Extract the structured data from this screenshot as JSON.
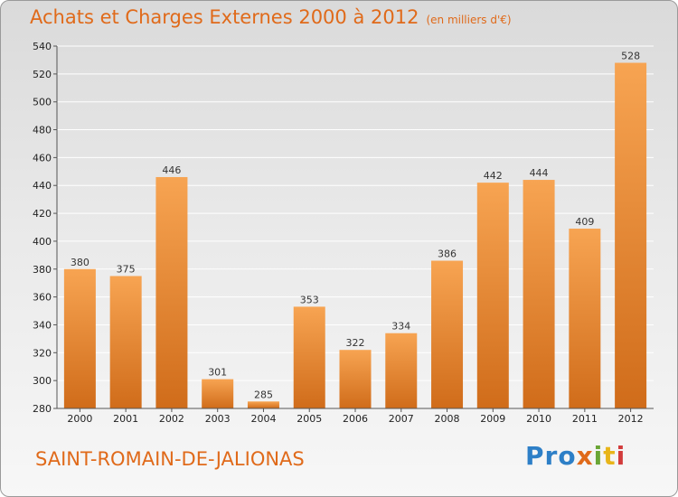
{
  "title": "Achats et Charges Externes 2000 à 2012",
  "unit": "(en milliers d'€)",
  "town": "SAINT-ROMAIN-DE-JALIONAS",
  "logo": [
    "Pro",
    "x",
    "i",
    "t",
    "i"
  ],
  "colors": {
    "bar_top": "#f7a452",
    "bar_bottom": "#d06c1a",
    "title": "#e06a1a",
    "grid": "#ffffff"
  },
  "chart_data": {
    "type": "bar",
    "title": "Achats et Charges Externes 2000 à 2012",
    "categories": [
      "2000",
      "2001",
      "2002",
      "2003",
      "2004",
      "2005",
      "2006",
      "2007",
      "2008",
      "2009",
      "2010",
      "2011",
      "2012"
    ],
    "values": [
      380,
      375,
      446,
      301,
      285,
      353,
      322,
      334,
      386,
      442,
      444,
      409,
      528
    ],
    "ylim": [
      280,
      540
    ],
    "yticks": [
      280,
      300,
      320,
      340,
      360,
      380,
      400,
      420,
      440,
      460,
      480,
      500,
      520,
      540
    ],
    "grid": true,
    "xlabel": "",
    "ylabel": ""
  }
}
